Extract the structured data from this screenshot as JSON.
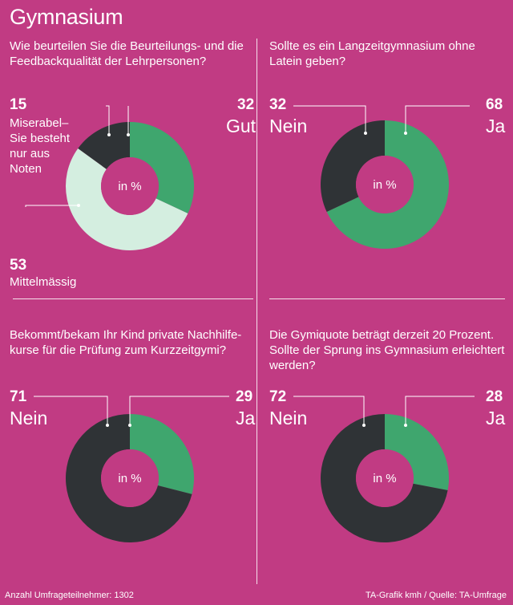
{
  "title": "Gymnasium",
  "footer": {
    "left": "Anzahl Umfrageteilnehmer: 1302",
    "right": "TA-Grafik kmh / Quelle: TA-Umfrage"
  },
  "colors": {
    "background": "#c13b83",
    "green": "#3fa66e",
    "dark": "#2f3336",
    "light": "#d4eee0"
  },
  "chart_data": [
    {
      "type": "pie",
      "question": "Wie beurteilen Sie die Beurteilungs- und die Feedbackqualität der Lehrpersonen?",
      "center_label": "in %",
      "slices": [
        {
          "label": "Gut",
          "value": 32,
          "color": "#3fa66e"
        },
        {
          "label": "Mittelmässig",
          "value": 53,
          "color": "#d4eee0"
        },
        {
          "label": "Miserabel– Sie besteht nur aus Noten",
          "value": 15,
          "color": "#2f3336"
        }
      ]
    },
    {
      "type": "pie",
      "question": "Sollte es ein Langzeitgymnasium ohne Latein geben?",
      "center_label": "in %",
      "slices": [
        {
          "label": "Ja",
          "value": 68,
          "color": "#3fa66e"
        },
        {
          "label": "Nein",
          "value": 32,
          "color": "#2f3336"
        }
      ]
    },
    {
      "type": "pie",
      "question": "Bekommt/bekam Ihr Kind private Nachhilfe-kurse für die Prüfung zum Kurzzeitgymi?",
      "center_label": "in %",
      "slices": [
        {
          "label": "Ja",
          "value": 29,
          "color": "#3fa66e"
        },
        {
          "label": "Nein",
          "value": 71,
          "color": "#2f3336"
        }
      ]
    },
    {
      "type": "pie",
      "question": "Die Gymiquote beträgt derzeit 20 Prozent. Sollte der Sprung ins Gymnasium erleichtert werden?",
      "center_label": "in %",
      "slices": [
        {
          "label": "Ja",
          "value": 28,
          "color": "#3fa66e"
        },
        {
          "label": "Nein",
          "value": 72,
          "color": "#2f3336"
        }
      ]
    }
  ]
}
